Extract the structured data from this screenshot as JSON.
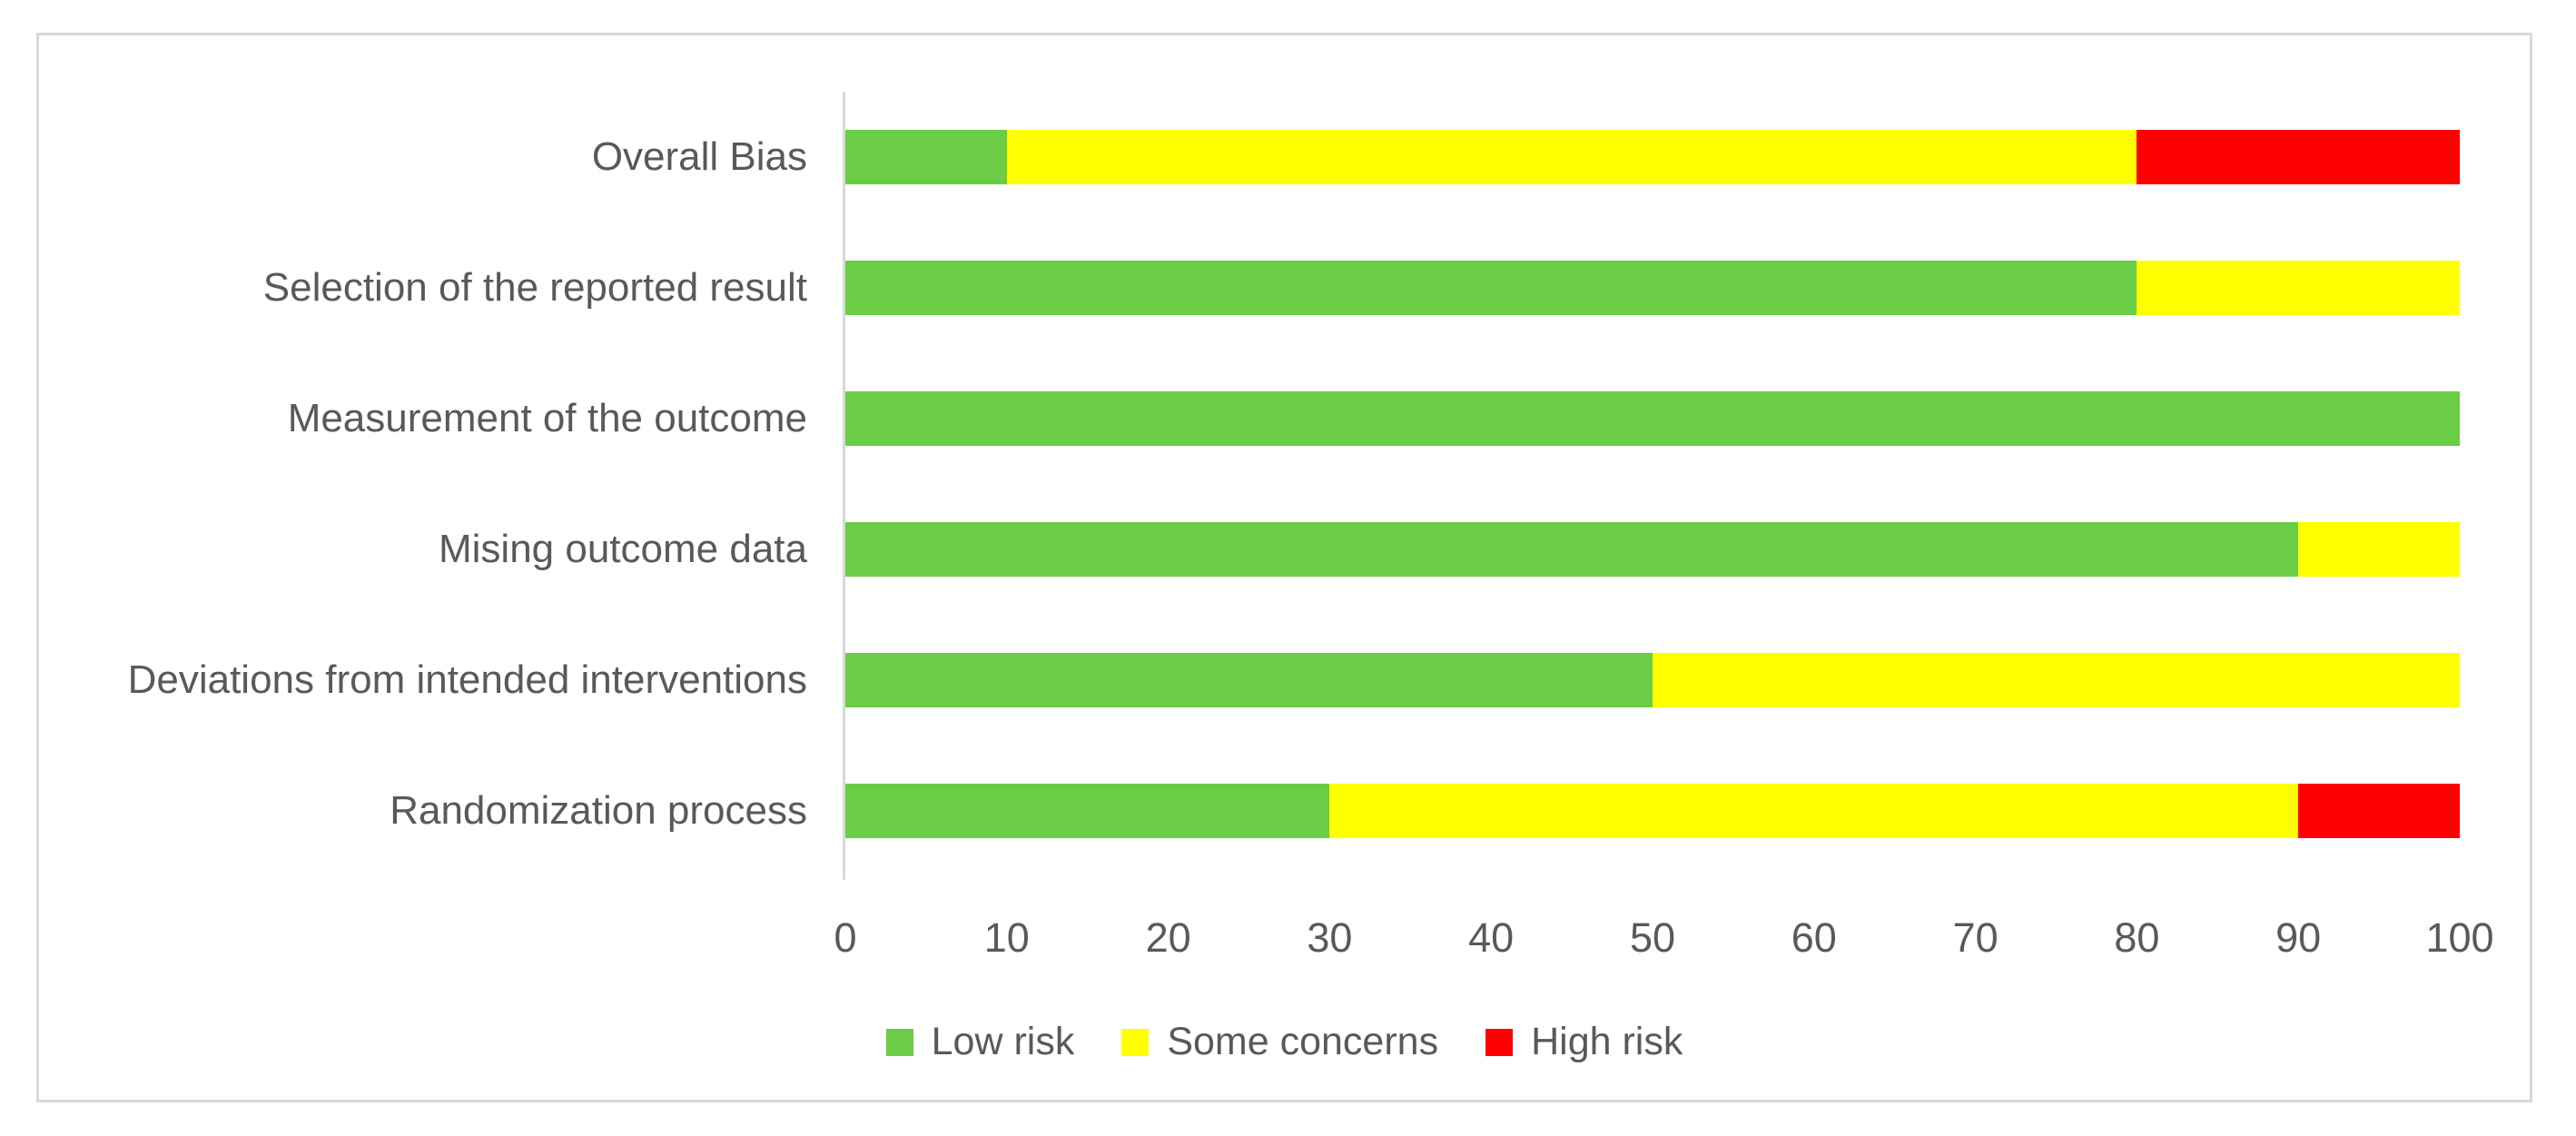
{
  "chart_data": {
    "type": "bar",
    "orientation": "horizontal",
    "stacked": true,
    "title": "",
    "xlabel": "",
    "ylabel": "",
    "xlim": [
      0,
      100
    ],
    "x_ticks": [
      "0",
      "10",
      "20",
      "30",
      "40",
      "50",
      "60",
      "70",
      "80",
      "90",
      "100"
    ],
    "grid": false,
    "categories": [
      "Overall Bias",
      "Selection of the reported result",
      "Measurement of the outcome",
      "Mising outcome data",
      "Deviations from intended interventions",
      "Randomization process"
    ],
    "series": [
      {
        "name": "Low risk",
        "color": "#6bcc45",
        "values": [
          10,
          80,
          100,
          90,
          50,
          30
        ]
      },
      {
        "name": "Some concerns",
        "color": "#ffff00",
        "values": [
          70,
          20,
          0,
          10,
          50,
          60
        ]
      },
      {
        "name": "High risk",
        "color": "#ff0000",
        "values": [
          20,
          0,
          0,
          0,
          0,
          10
        ]
      }
    ],
    "legend": {
      "position": "bottom",
      "entries": [
        "Low risk",
        "Some concerns",
        "High risk"
      ]
    }
  },
  "colors": {
    "low_risk": "#6bcc45",
    "some_concerns": "#ffff00",
    "high_risk": "#ff0000",
    "axis_and_frame": "#d9d9d9",
    "text": "#595959",
    "background": "#ffffff"
  }
}
